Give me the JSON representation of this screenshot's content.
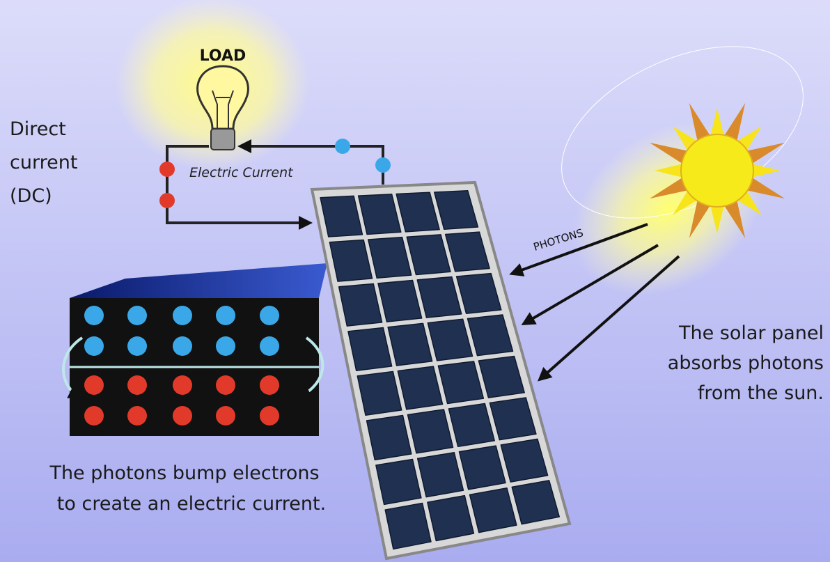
{
  "labels": {
    "load": "LOAD",
    "electric_current": "Electric Current",
    "photons": "PHOTONS",
    "direct_current": [
      "Direct",
      "current",
      "(DC)"
    ],
    "panel_caption": [
      "The solar panel",
      "absorbs photons",
      "from the sun."
    ],
    "electron_caption": [
      "The photons bump electrons",
      "to create an electric current."
    ]
  }
}
